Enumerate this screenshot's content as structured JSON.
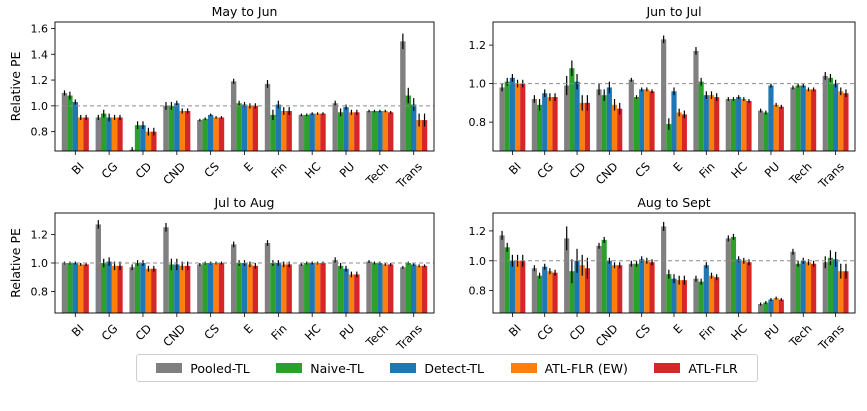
{
  "chart_data": [
    {
      "type": "bar",
      "title": "May to Jun",
      "ylabel": "Relative PE",
      "ylim": [
        0.65,
        1.65
      ],
      "yticks": [
        0.8,
        1.0,
        1.2,
        1.4,
        1.6
      ],
      "reference_line": 1.0,
      "categories": [
        "BI",
        "CG",
        "CD",
        "CND",
        "CS",
        "E",
        "Fin",
        "HC",
        "PU",
        "Tech",
        "Trans"
      ],
      "series": [
        {
          "name": "Pooled-TL",
          "values": [
            1.1,
            0.91,
            0.66,
            1.0,
            0.89,
            1.19,
            1.17,
            0.93,
            1.02,
            0.96,
            1.5
          ],
          "errors": [
            0.02,
            0.02,
            0.02,
            0.03,
            0.01,
            0.02,
            0.03,
            0.01,
            0.02,
            0.01,
            0.06
          ]
        },
        {
          "name": "Naive-TL",
          "values": [
            1.08,
            0.94,
            0.85,
            1.0,
            0.9,
            1.02,
            0.93,
            0.93,
            0.95,
            0.96,
            1.08
          ],
          "errors": [
            0.03,
            0.03,
            0.03,
            0.03,
            0.01,
            0.02,
            0.04,
            0.01,
            0.03,
            0.01,
            0.06
          ]
        },
        {
          "name": "Detect-TL",
          "values": [
            1.03,
            0.91,
            0.85,
            1.02,
            0.93,
            1.01,
            1.01,
            0.94,
            0.99,
            0.96,
            1.01
          ],
          "errors": [
            0.02,
            0.03,
            0.03,
            0.02,
            0.01,
            0.02,
            0.03,
            0.01,
            0.02,
            0.01,
            0.05
          ]
        },
        {
          "name": "ATL-FLR (EW)",
          "values": [
            0.91,
            0.91,
            0.8,
            0.96,
            0.91,
            1.0,
            0.96,
            0.94,
            0.95,
            0.96,
            0.89
          ],
          "errors": [
            0.02,
            0.02,
            0.03,
            0.02,
            0.01,
            0.02,
            0.03,
            0.01,
            0.02,
            0.01,
            0.05
          ]
        },
        {
          "name": "ATL-FLR",
          "values": [
            0.91,
            0.91,
            0.8,
            0.96,
            0.91,
            1.0,
            0.96,
            0.94,
            0.95,
            0.95,
            0.89
          ],
          "errors": [
            0.02,
            0.02,
            0.03,
            0.02,
            0.01,
            0.02,
            0.03,
            0.01,
            0.02,
            0.01,
            0.05
          ]
        }
      ]
    },
    {
      "type": "bar",
      "title": "Jun to Jul",
      "ylabel": "",
      "ylim": [
        0.65,
        1.32
      ],
      "yticks": [
        0.8,
        1.0,
        1.2
      ],
      "reference_line": 1.0,
      "categories": [
        "BI",
        "CG",
        "CD",
        "CND",
        "CS",
        "E",
        "Fin",
        "HC",
        "PU",
        "Tech",
        "Trans"
      ],
      "series": [
        {
          "name": "Pooled-TL",
          "values": [
            0.98,
            0.92,
            0.99,
            0.97,
            1.02,
            1.23,
            1.17,
            0.92,
            0.86,
            0.98,
            1.04
          ],
          "errors": [
            0.02,
            0.02,
            0.05,
            0.03,
            0.01,
            0.02,
            0.02,
            0.01,
            0.01,
            0.01,
            0.02
          ]
        },
        {
          "name": "Naive-TL",
          "values": [
            1.01,
            0.89,
            1.08,
            0.94,
            0.93,
            0.79,
            1.01,
            0.92,
            0.85,
            0.99,
            1.03
          ],
          "errors": [
            0.02,
            0.03,
            0.04,
            0.03,
            0.01,
            0.03,
            0.02,
            0.01,
            0.01,
            0.01,
            0.02
          ]
        },
        {
          "name": "Detect-TL",
          "values": [
            1.03,
            0.95,
            1.01,
            0.98,
            0.97,
            0.96,
            0.94,
            0.93,
            0.99,
            0.99,
            1.0
          ],
          "errors": [
            0.02,
            0.02,
            0.04,
            0.03,
            0.01,
            0.02,
            0.02,
            0.01,
            0.01,
            0.01,
            0.02
          ]
        },
        {
          "name": "ATL-FLR (EW)",
          "values": [
            1.0,
            0.93,
            0.9,
            0.89,
            0.97,
            0.85,
            0.94,
            0.92,
            0.89,
            0.97,
            0.96
          ],
          "errors": [
            0.02,
            0.02,
            0.04,
            0.03,
            0.01,
            0.02,
            0.02,
            0.01,
            0.01,
            0.01,
            0.02
          ]
        },
        {
          "name": "ATL-FLR",
          "values": [
            1.0,
            0.93,
            0.9,
            0.87,
            0.96,
            0.84,
            0.93,
            0.91,
            0.88,
            0.97,
            0.95
          ],
          "errors": [
            0.02,
            0.02,
            0.04,
            0.03,
            0.01,
            0.02,
            0.02,
            0.01,
            0.01,
            0.01,
            0.02
          ]
        }
      ]
    },
    {
      "type": "bar",
      "title": "Jul to Aug",
      "ylabel": "Relative PE",
      "ylim": [
        0.65,
        1.35
      ],
      "yticks": [
        0.8,
        1.0,
        1.2
      ],
      "reference_line": 1.0,
      "categories": [
        "BI",
        "CG",
        "CD",
        "CND",
        "CS",
        "E",
        "Fin",
        "HC",
        "PU",
        "Tech",
        "Trans"
      ],
      "series": [
        {
          "name": "Pooled-TL",
          "values": [
            1.0,
            1.27,
            0.97,
            1.25,
            0.99,
            1.13,
            1.14,
            0.99,
            1.02,
            1.01,
            0.97
          ],
          "errors": [
            0.01,
            0.03,
            0.02,
            0.03,
            0.01,
            0.02,
            0.02,
            0.01,
            0.02,
            0.01,
            0.01
          ]
        },
        {
          "name": "Naive-TL",
          "values": [
            1.0,
            1.0,
            1.0,
            0.99,
            1.0,
            1.0,
            1.0,
            1.0,
            0.98,
            1.0,
            1.0
          ],
          "errors": [
            0.01,
            0.03,
            0.02,
            0.04,
            0.01,
            0.02,
            0.02,
            0.01,
            0.02,
            0.01,
            0.01
          ]
        },
        {
          "name": "Detect-TL",
          "values": [
            1.0,
            1.01,
            1.0,
            0.99,
            1.0,
            1.0,
            1.0,
            1.0,
            0.96,
            1.0,
            0.99
          ],
          "errors": [
            0.01,
            0.03,
            0.02,
            0.04,
            0.01,
            0.02,
            0.02,
            0.01,
            0.02,
            0.01,
            0.01
          ]
        },
        {
          "name": "ATL-FLR (EW)",
          "values": [
            0.99,
            0.98,
            0.96,
            0.98,
            1.0,
            0.99,
            0.99,
            1.0,
            0.92,
            0.99,
            0.98
          ],
          "errors": [
            0.01,
            0.03,
            0.02,
            0.03,
            0.01,
            0.02,
            0.02,
            0.01,
            0.02,
            0.01,
            0.01
          ]
        },
        {
          "name": "ATL-FLR",
          "values": [
            0.99,
            0.98,
            0.96,
            0.98,
            1.0,
            0.98,
            0.99,
            1.0,
            0.92,
            0.99,
            0.98
          ],
          "errors": [
            0.01,
            0.03,
            0.02,
            0.03,
            0.01,
            0.02,
            0.02,
            0.01,
            0.02,
            0.01,
            0.01
          ]
        }
      ]
    },
    {
      "type": "bar",
      "title": "Aug to Sept",
      "ylabel": "",
      "ylim": [
        0.65,
        1.32
      ],
      "yticks": [
        0.8,
        1.0,
        1.2
      ],
      "reference_line": 1.0,
      "categories": [
        "BI",
        "CG",
        "CD",
        "CND",
        "CS",
        "E",
        "Fin",
        "HC",
        "PU",
        "Tech",
        "Trans"
      ],
      "series": [
        {
          "name": "Pooled-TL",
          "values": [
            1.17,
            0.95,
            1.15,
            1.1,
            0.98,
            1.23,
            0.88,
            1.15,
            0.71,
            1.06,
            0.99
          ],
          "errors": [
            0.03,
            0.02,
            0.08,
            0.02,
            0.02,
            0.03,
            0.02,
            0.02,
            0.01,
            0.02,
            0.04
          ]
        },
        {
          "name": "Naive-TL",
          "values": [
            1.09,
            0.9,
            0.93,
            1.14,
            0.98,
            0.91,
            0.86,
            1.16,
            0.72,
            0.98,
            1.02
          ],
          "errors": [
            0.03,
            0.02,
            0.08,
            0.02,
            0.02,
            0.03,
            0.02,
            0.02,
            0.01,
            0.02,
            0.05
          ]
        },
        {
          "name": "Detect-TL",
          "values": [
            1.0,
            0.96,
            1.0,
            1.0,
            1.01,
            0.88,
            0.97,
            1.01,
            0.74,
            1.0,
            1.01
          ],
          "errors": [
            0.04,
            0.02,
            0.08,
            0.02,
            0.02,
            0.03,
            0.02,
            0.02,
            0.01,
            0.02,
            0.05
          ]
        },
        {
          "name": "ATL-FLR (EW)",
          "values": [
            1.0,
            0.93,
            0.97,
            0.97,
            1.0,
            0.87,
            0.9,
            1.0,
            0.75,
            0.99,
            0.93
          ],
          "errors": [
            0.04,
            0.02,
            0.07,
            0.02,
            0.02,
            0.03,
            0.02,
            0.02,
            0.01,
            0.02,
            0.05
          ]
        },
        {
          "name": "ATL-FLR",
          "values": [
            1.0,
            0.92,
            0.95,
            0.97,
            0.99,
            0.87,
            0.89,
            0.99,
            0.74,
            0.98,
            0.93
          ],
          "errors": [
            0.04,
            0.02,
            0.07,
            0.02,
            0.02,
            0.03,
            0.02,
            0.02,
            0.01,
            0.02,
            0.05
          ]
        }
      ]
    }
  ],
  "legend": {
    "placement": "bottom-center",
    "items": [
      {
        "label": "Pooled-TL",
        "color": "#808080"
      },
      {
        "label": "Naive-TL",
        "color": "#2ca02c"
      },
      {
        "label": "Detect-TL",
        "color": "#1f77b4"
      },
      {
        "label": "ATL-FLR (EW)",
        "color": "#ff7f0e"
      },
      {
        "label": "ATL-FLR",
        "color": "#d62728"
      }
    ]
  }
}
